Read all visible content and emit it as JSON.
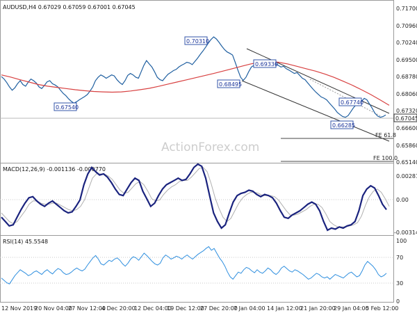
{
  "chart_data": [
    {
      "type": "candlestick",
      "title": "AUDUSD,H4 0.67029 0.67059 0.67001 0.67045",
      "watermark": "ActionForex.com",
      "ylim": [
        0.6505,
        0.7185
      ],
      "y_tick_labels": [
        "0.71700",
        "0.70960",
        "0.70240",
        "0.69500",
        "0.68780",
        "0.68060",
        "0.67320",
        "0.66600",
        "0.65860",
        "0.65140"
      ],
      "current_price": "0.67045",
      "series": [
        {
          "name": "price",
          "color": "#1f5fa0",
          "values": [
            0.6865,
            0.6855,
            0.684,
            0.6822,
            0.6808,
            0.6818,
            0.6835,
            0.6848,
            0.6832,
            0.6825,
            0.6842,
            0.6855,
            0.6848,
            0.6838,
            0.6822,
            0.6815,
            0.6828,
            0.6843,
            0.6848,
            0.6835,
            0.683,
            0.6822,
            0.6808,
            0.6795,
            0.6785,
            0.6772,
            0.6762,
            0.6754,
            0.676,
            0.6768,
            0.6775,
            0.6782,
            0.679,
            0.6805,
            0.6822,
            0.6848,
            0.6862,
            0.6872,
            0.6866,
            0.6858,
            0.6865,
            0.6872,
            0.6868,
            0.6852,
            0.684,
            0.6832,
            0.6848,
            0.687,
            0.6878,
            0.6872,
            0.6862,
            0.6858,
            0.6885,
            0.6912,
            0.6932,
            0.6918,
            0.6905,
            0.6885,
            0.6862,
            0.6852,
            0.6848,
            0.6862,
            0.6875,
            0.6882,
            0.689,
            0.6895,
            0.6905,
            0.6912,
            0.6918,
            0.6925,
            0.6922,
            0.6915,
            0.6928,
            0.6942,
            0.6958,
            0.6972,
            0.6988,
            0.7005,
            0.702,
            0.7031,
            0.7022,
            0.7008,
            0.6992,
            0.6978,
            0.6968,
            0.6962,
            0.6955,
            0.6925,
            0.6892,
            0.6862,
            0.6849,
            0.6862,
            0.6885,
            0.6905,
            0.6912,
            0.692,
            0.6928,
            0.6933,
            0.6925,
            0.6918,
            0.6912,
            0.6915,
            0.692,
            0.6912,
            0.6905,
            0.6908,
            0.6898,
            0.6892,
            0.6885,
            0.6878,
            0.6882,
            0.687,
            0.6858,
            0.6852,
            0.6838,
            0.6825,
            0.6812,
            0.68,
            0.679,
            0.678,
            0.6775,
            0.6768,
            0.6755,
            0.6742,
            0.673,
            0.6715,
            0.6706,
            0.6698,
            0.6695,
            0.6702,
            0.6718,
            0.6735,
            0.6748,
            0.6755,
            0.6762,
            0.6774,
            0.6768,
            0.675,
            0.6732,
            0.6712,
            0.67,
            0.6695,
            0.6698,
            0.6705
          ]
        },
        {
          "name": "moving average",
          "color": "#d84040",
          "values": [
            0.6872,
            0.6863,
            0.6852,
            0.6842,
            0.6832,
            0.6825,
            0.682,
            0.6815,
            0.681,
            0.6806,
            0.6803,
            0.6801,
            0.68,
            0.6801,
            0.6805,
            0.681,
            0.6816,
            0.6824,
            0.6833,
            0.6842,
            0.6851,
            0.686,
            0.6869,
            0.6878,
            0.6888,
            0.6898,
            0.6908,
            0.6918,
            0.6925,
            0.6928,
            0.6925,
            0.6918,
            0.6908,
            0.6898,
            0.6888,
            0.6876,
            0.6862,
            0.6846,
            0.6829,
            0.681,
            0.679,
            0.6768,
            0.6745
          ]
        }
      ],
      "annotations": [
        "0.70310",
        "0.69330",
        "0.68495",
        "0.67540",
        "0.67740",
        "0.66285",
        "FE 61.8",
        "FE 100.0"
      ]
    },
    {
      "type": "line",
      "title": "MACD(12,26,9) -0.001136 -0.000770",
      "ylim": [
        -0.00345,
        0.0031
      ],
      "y_tick_labels": [
        "0.00281",
        "0.00",
        "-0.003141"
      ],
      "series": [
        {
          "name": "MACD",
          "color": "#1a237e",
          "values": [
            -0.0018,
            -0.0022,
            -0.0026,
            -0.0025,
            -0.0018,
            -0.0011,
            -0.0005,
            0.0,
            0.0001,
            -0.0003,
            -0.0006,
            -0.0008,
            -0.0005,
            -0.0003,
            -0.0006,
            -0.0009,
            -0.0012,
            -0.0014,
            -0.0013,
            -0.0008,
            -0.0002,
            0.0012,
            0.0022,
            0.0028,
            0.0024,
            0.0021,
            0.0022,
            0.0019,
            0.0014,
            0.0008,
            0.0003,
            0.0002,
            0.0008,
            0.0014,
            0.0018,
            0.0016,
            0.0006,
            -0.0001,
            -0.0008,
            -0.0005,
            0.0002,
            0.0008,
            0.0012,
            0.0014,
            0.0016,
            0.0018,
            0.0016,
            0.0017,
            0.0022,
            0.0028,
            0.0031,
            0.0029,
            0.0018,
            0.0002,
            -0.0014,
            -0.0022,
            -0.0028,
            -0.0025,
            -0.0014,
            -0.0004,
            0.0002,
            0.0004,
            0.0005,
            0.0007,
            0.0006,
            0.0003,
            0.0001,
            0.0003,
            0.0002,
            0.0,
            -0.0005,
            -0.0012,
            -0.0018,
            -0.0019,
            -0.0016,
            -0.0014,
            -0.0012,
            -0.0009,
            -0.0006,
            -0.0004,
            -0.0006,
            -0.0012,
            -0.0022,
            -0.003,
            -0.0028,
            -0.0029,
            -0.0027,
            -0.0028,
            -0.0026,
            -0.0025,
            -0.0022,
            -0.0012,
            0.0002,
            0.0008,
            0.0011,
            0.0009,
            0.0002,
            -0.0006,
            -0.0011
          ]
        },
        {
          "name": "Signal",
          "color": "#b0b0b0",
          "values": [
            -0.0014,
            -0.0018,
            -0.0022,
            -0.0024,
            -0.0022,
            -0.0017,
            -0.0012,
            -0.0006,
            -0.0003,
            -0.0003,
            -0.0005,
            -0.0006,
            -0.0006,
            -0.0005,
            -0.0005,
            -0.0007,
            -0.0009,
            -0.0011,
            -0.0012,
            -0.0011,
            -0.0008,
            -0.0002,
            0.0008,
            0.0018,
            0.0022,
            0.0022,
            0.0022,
            0.002,
            0.0017,
            0.0012,
            0.0007,
            0.0004,
            0.0005,
            0.0009,
            0.0013,
            0.0015,
            0.0012,
            0.0006,
            -0.0001,
            -0.0003,
            -0.0002,
            0.0003,
            0.0007,
            0.001,
            0.0012,
            0.0015,
            0.0016,
            0.0016,
            0.0019,
            0.0023,
            0.0027,
            0.0028,
            0.0024,
            0.0013,
            0.0,
            -0.001,
            -0.0018,
            -0.0022,
            -0.0019,
            -0.0012,
            -0.0005,
            0.0,
            0.0003,
            0.0005,
            0.0005,
            0.0004,
            0.0002,
            0.0002,
            0.0002,
            0.0001,
            -0.0002,
            -0.0007,
            -0.0012,
            -0.0016,
            -0.0016,
            -0.0015,
            -0.0013,
            -0.0011,
            -0.0008,
            -0.0006,
            -0.0006,
            -0.0009,
            -0.0015,
            -0.0022,
            -0.0025,
            -0.0027,
            -0.0027,
            -0.0027,
            -0.0026,
            -0.0025,
            -0.0023,
            -0.0017,
            -0.0007,
            0.0001,
            0.0006,
            0.0008,
            0.0005,
            -0.0001,
            -0.0008
          ]
        }
      ]
    },
    {
      "type": "line",
      "title": "RSI(14) 45.5548",
      "ylim": [
        0,
        100
      ],
      "y_tick_labels": [
        "100",
        "70",
        "30",
        "0"
      ],
      "levels": [
        70,
        30
      ],
      "series": [
        {
          "name": "RSI",
          "color": "#2f8fdf",
          "values": [
            38,
            34,
            30,
            28,
            35,
            42,
            47,
            52,
            49,
            46,
            42,
            44,
            48,
            50,
            47,
            44,
            49,
            52,
            48,
            45,
            50,
            54,
            52,
            47,
            44,
            45,
            48,
            52,
            55,
            52,
            50,
            53,
            60,
            66,
            72,
            76,
            70,
            62,
            60,
            64,
            68,
            66,
            70,
            72,
            68,
            62,
            58,
            63,
            70,
            74,
            72,
            68,
            74,
            80,
            76,
            71,
            66,
            62,
            60,
            63,
            72,
            77,
            74,
            70,
            72,
            75,
            73,
            70,
            74,
            77,
            73,
            70,
            74,
            78,
            81,
            84,
            88,
            91,
            85,
            88,
            80,
            72,
            66,
            58,
            48,
            40,
            36,
            42,
            48,
            46,
            52,
            56,
            54,
            50,
            47,
            52,
            48,
            46,
            50,
            55,
            52,
            47,
            44,
            48,
            55,
            58,
            54,
            50,
            48,
            52,
            50,
            47,
            44,
            40,
            36,
            38,
            42,
            46,
            44,
            40,
            38,
            40,
            36,
            40,
            44,
            42,
            40,
            38,
            42,
            46,
            48,
            44,
            40,
            42,
            50,
            60,
            66,
            62,
            58,
            52,
            44,
            40,
            42,
            46
          ]
        }
      ]
    }
  ],
  "x_tick_labels": [
    "12 Nov 2019",
    "20 Nov 04:00",
    "27 Nov 12:00",
    "4 Dec 20:00",
    "12 Dec 04:00",
    "19 Dec 12:00",
    "27 Dec 20:00",
    "7 Jan 04:00",
    "14 Jan 12:00",
    "21 Jan 20:00",
    "29 Jan 04:00",
    "5 Feb 12:00"
  ]
}
